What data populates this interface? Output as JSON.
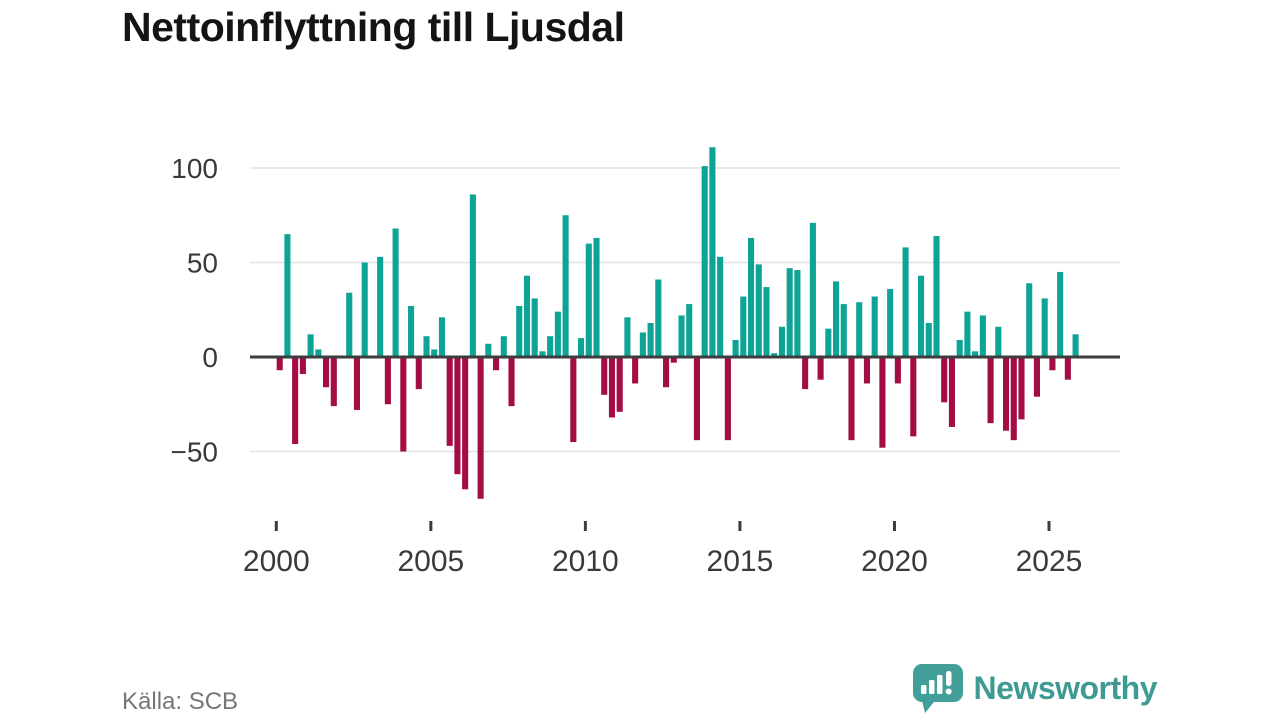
{
  "title": "Nettoinflyttning till Ljusdal",
  "source": "Källa: SCB",
  "brand": {
    "name": "Newsworthy"
  },
  "colors": {
    "positive": "#0da496",
    "negative": "#a30c44",
    "axis_line": "#3d3d3d",
    "gridline": "#e2e2e2",
    "tick_label": "#3a3a3a",
    "title_text": "#141414",
    "source_text": "#767676",
    "brand_teal": "#3e9b94"
  },
  "chart_data": {
    "type": "bar",
    "title": "Nettoinflyttning till Ljusdal",
    "frequency": "quarterly",
    "start": "2000 Q1",
    "end": "2025 Q4",
    "values": [
      -7,
      65,
      -46,
      -9,
      12,
      4,
      -16,
      -26,
      0,
      34,
      -28,
      50,
      0,
      53,
      -25,
      68,
      -50,
      27,
      -17,
      11,
      4,
      21,
      -47,
      -62,
      -70,
      86,
      -75,
      7,
      -7,
      11,
      -26,
      27,
      43,
      31,
      3,
      11,
      24,
      75,
      -45,
      10,
      60,
      63,
      -20,
      -32,
      -29,
      21,
      -14,
      13,
      18,
      41,
      -16,
      -3,
      22,
      28,
      -44,
      101,
      111,
      53,
      -44,
      9,
      32,
      63,
      49,
      37,
      2,
      16,
      47,
      46,
      -17,
      71,
      -12,
      15,
      40,
      28,
      -44,
      29,
      -14,
      32,
      -48,
      36,
      -14,
      58,
      -42,
      43,
      18,
      64,
      -24,
      -37,
      9,
      24,
      3,
      22,
      -35,
      16,
      -39,
      -44,
      -33,
      39,
      -21,
      31,
      -7,
      45,
      -12,
      12
    ],
    "ytick_values": [
      100,
      50,
      0,
      -50
    ],
    "ytick_labels": [
      "100",
      "50",
      "0",
      "−50"
    ],
    "xtick_years": [
      2000,
      2005,
      2010,
      2015,
      2020,
      2025
    ],
    "xtick_labels": [
      "2000",
      "2005",
      "2010",
      "2015",
      "2020",
      "2025"
    ],
    "ylim": [
      -80,
      115
    ],
    "grid": true,
    "legend": "none",
    "positive_color": "#0da496",
    "negative_color": "#a30c44"
  }
}
